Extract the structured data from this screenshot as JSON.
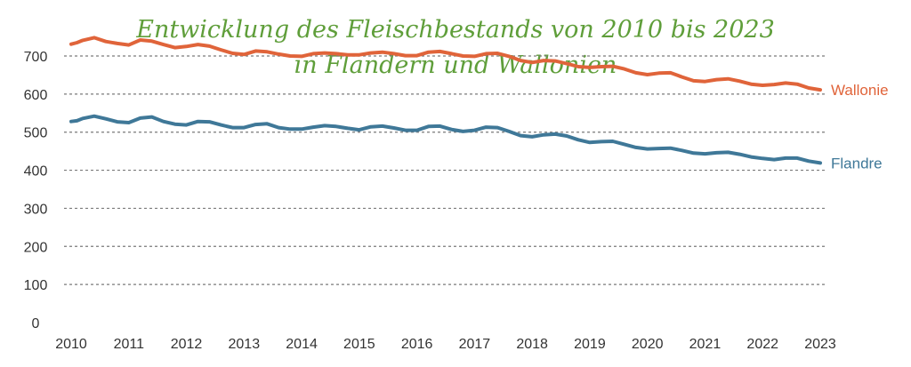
{
  "chart_data": {
    "type": "line",
    "title": "Entwicklung des Fleischbestands von 2010 bis 2023 in Flandern und Wallonien",
    "title_lines": [
      "Entwicklung des Fleischbestands von 2010 bis 2023",
      "in Flandern und Wallonien"
    ],
    "xlabel": "",
    "ylabel": "",
    "xlim": [
      2010,
      2023
    ],
    "ylim": [
      0,
      700
    ],
    "x_ticks": [
      2010,
      2011,
      2012,
      2013,
      2014,
      2015,
      2016,
      2017,
      2018,
      2019,
      2020,
      2021,
      2022,
      2023
    ],
    "y_ticks": [
      0,
      100,
      200,
      300,
      400,
      500,
      600,
      700
    ],
    "grid": "horizontal-dashed",
    "legend": "direct-labels-right",
    "series": [
      {
        "name": "Wallonie",
        "color": "#e0643a",
        "x": [
          2010.0,
          2010.1,
          2010.2,
          2010.4,
          2010.6,
          2010.8,
          2011.0,
          2011.2,
          2011.4,
          2011.6,
          2011.8,
          2012.0,
          2012.2,
          2012.4,
          2012.6,
          2012.8,
          2013.0,
          2013.2,
          2013.4,
          2013.6,
          2013.8,
          2014.0,
          2014.2,
          2014.4,
          2014.6,
          2014.8,
          2015.0,
          2015.2,
          2015.4,
          2015.6,
          2015.8,
          2016.0,
          2016.2,
          2016.4,
          2016.6,
          2016.8,
          2017.0,
          2017.2,
          2017.4,
          2017.6,
          2017.8,
          2018.0,
          2018.2,
          2018.4,
          2018.6,
          2018.8,
          2019.0,
          2019.2,
          2019.4,
          2019.6,
          2019.8,
          2020.0,
          2020.2,
          2020.4,
          2020.6,
          2020.8,
          2021.0,
          2021.2,
          2021.4,
          2021.6,
          2021.8,
          2022.0,
          2022.2,
          2022.4,
          2022.6,
          2022.8,
          2023.0
        ],
        "values": [
          731,
          735,
          741,
          748,
          738,
          733,
          729,
          742,
          739,
          730,
          722,
          725,
          730,
          726,
          716,
          707,
          704,
          713,
          711,
          705,
          700,
          699,
          706,
          708,
          706,
          703,
          703,
          708,
          710,
          706,
          701,
          701,
          710,
          712,
          706,
          700,
          699,
          706,
          707,
          699,
          688,
          683,
          688,
          687,
          680,
          672,
          670,
          672,
          673,
          666,
          656,
          651,
          655,
          656,
          645,
          635,
          633,
          638,
          640,
          634,
          626,
          623,
          625,
          629,
          626,
          616,
          611
        ]
      },
      {
        "name": "Flandre",
        "color": "#3f7898",
        "x": [
          2010.0,
          2010.1,
          2010.2,
          2010.4,
          2010.6,
          2010.8,
          2011.0,
          2011.2,
          2011.4,
          2011.6,
          2011.8,
          2012.0,
          2012.2,
          2012.4,
          2012.6,
          2012.8,
          2013.0,
          2013.2,
          2013.4,
          2013.6,
          2013.8,
          2014.0,
          2014.2,
          2014.4,
          2014.6,
          2014.8,
          2015.0,
          2015.2,
          2015.4,
          2015.6,
          2015.8,
          2016.0,
          2016.2,
          2016.4,
          2016.6,
          2016.8,
          2017.0,
          2017.2,
          2017.4,
          2017.6,
          2017.8,
          2018.0,
          2018.2,
          2018.4,
          2018.6,
          2018.8,
          2019.0,
          2019.2,
          2019.4,
          2019.6,
          2019.8,
          2020.0,
          2020.2,
          2020.4,
          2020.6,
          2020.8,
          2021.0,
          2021.2,
          2021.4,
          2021.6,
          2021.8,
          2022.0,
          2022.2,
          2022.4,
          2022.6,
          2022.8,
          2023.0
        ],
        "values": [
          528,
          530,
          536,
          542,
          535,
          527,
          525,
          537,
          540,
          528,
          521,
          519,
          528,
          527,
          519,
          512,
          512,
          520,
          522,
          512,
          508,
          508,
          513,
          517,
          515,
          510,
          506,
          514,
          516,
          511,
          505,
          505,
          515,
          516,
          507,
          502,
          505,
          513,
          512,
          502,
          491,
          488,
          493,
          495,
          490,
          480,
          473,
          475,
          476,
          468,
          460,
          456,
          457,
          458,
          452,
          445,
          443,
          446,
          447,
          442,
          435,
          431,
          428,
          432,
          432,
          424,
          419
        ]
      }
    ]
  }
}
